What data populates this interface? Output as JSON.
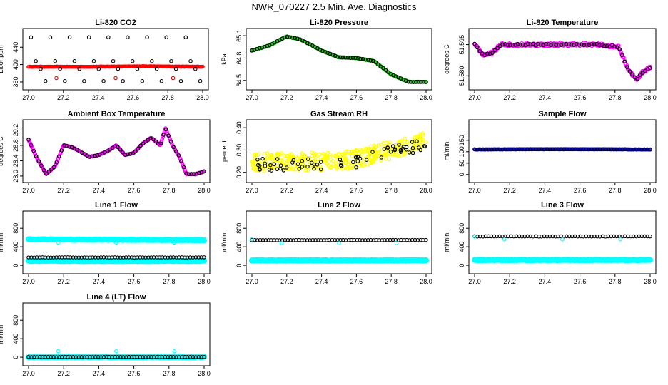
{
  "title": "NWR_070227  2.5 Min. Ave. Diagnostics",
  "colors": {
    "black": "#000000",
    "red": "#ff0000",
    "green": "#22cc22",
    "magenta": "#ff00ff",
    "yellow": "#ffff00",
    "blue": "#0000cc",
    "cyan": "#00ffff"
  },
  "chart_data": [
    {
      "id": "co2",
      "type": "scatter",
      "title": "Li-820 CO2",
      "ylabel": "Licor ppm",
      "xlim": [
        27.0,
        28.0
      ],
      "ylim": [
        355,
        470
      ],
      "xticks": [
        "27.0",
        "27.2",
        "27.4",
        "27.6",
        "27.8",
        "28.0"
      ],
      "yticks": [
        "360",
        "400",
        "440"
      ],
      "series": [
        {
          "color": "red",
          "pattern": "flat",
          "values": [
            395,
            395,
            396,
            395
          ]
        },
        {
          "color": "black",
          "pattern": "levels",
          "values": [
            463,
            408,
            390,
            362
          ]
        },
        {
          "color": "red",
          "pattern": "points",
          "x": [
            27.16,
            27.5,
            27.83
          ],
          "values": [
            369,
            369,
            369
          ]
        }
      ]
    },
    {
      "id": "press",
      "type": "scatter",
      "title": "Li-820 Pressure",
      "ylabel": "kPa",
      "xlim": [
        27.0,
        28.0
      ],
      "ylim": [
        64.45,
        65.12
      ],
      "xticks": [
        "27.0",
        "27.2",
        "27.4",
        "27.6",
        "27.8",
        "28.0"
      ],
      "yticks": [
        "64.5",
        "64.8",
        "65.1"
      ],
      "series": [
        {
          "color": "green",
          "pattern": "curve",
          "x": [
            27.0,
            27.1,
            27.2,
            27.28,
            27.4,
            27.5,
            27.6,
            27.7,
            27.8,
            27.9,
            28.0
          ],
          "values": [
            64.9,
            64.97,
            65.09,
            65.05,
            64.9,
            64.81,
            64.8,
            64.76,
            64.58,
            64.48,
            64.48
          ]
        },
        {
          "color": "black",
          "pattern": "curve",
          "x": [
            27.0,
            27.1,
            27.2,
            27.28,
            27.4,
            27.5,
            27.6,
            27.7,
            27.8,
            27.9,
            28.0
          ],
          "values": [
            64.9,
            64.97,
            65.09,
            65.05,
            64.9,
            64.81,
            64.8,
            64.76,
            64.58,
            64.48,
            64.48
          ]
        }
      ]
    },
    {
      "id": "temp",
      "type": "scatter",
      "title": "Li-820 Temperature",
      "ylabel": "degrees C",
      "xlim": [
        27.0,
        28.0
      ],
      "ylim": [
        51.576,
        51.6
      ],
      "xticks": [
        "27.0",
        "27.2",
        "27.4",
        "27.6",
        "27.8",
        "28.0"
      ],
      "yticks": [
        "51.580",
        "51.595"
      ],
      "series": [
        {
          "color": "magenta",
          "pattern": "curve",
          "x": [
            27.0,
            27.05,
            27.1,
            27.15,
            27.3,
            27.5,
            27.7,
            27.82,
            27.87,
            27.92,
            27.96,
            28.0
          ],
          "values": [
            51.595,
            51.59,
            51.591,
            51.595,
            51.595,
            51.595,
            51.595,
            51.594,
            51.584,
            51.578,
            51.582,
            51.584
          ]
        },
        {
          "color": "black",
          "pattern": "curve",
          "x": [
            27.0,
            27.05,
            27.1,
            27.15,
            27.3,
            27.5,
            27.7,
            27.82,
            27.87,
            27.92,
            27.96,
            28.0
          ],
          "values": [
            51.595,
            51.59,
            51.591,
            51.595,
            51.595,
            51.595,
            51.595,
            51.594,
            51.584,
            51.578,
            51.582,
            51.584
          ]
        }
      ]
    },
    {
      "id": "ambient",
      "type": "scatter",
      "title": "Ambient Box Temperature",
      "ylabel": "degrees C",
      "xlim": [
        27.0,
        28.0
      ],
      "ylim": [
        27.98,
        29.32
      ],
      "xticks": [
        "27.0",
        "27.2",
        "27.4",
        "27.6",
        "27.8",
        "28.0"
      ],
      "yticks": [
        "28.0",
        "28.4",
        "28.8",
        "29.2"
      ],
      "series": [
        {
          "color": "magenta",
          "pattern": "curve",
          "x": [
            27.0,
            27.05,
            27.1,
            27.15,
            27.2,
            27.25,
            27.3,
            27.35,
            27.4,
            27.45,
            27.5,
            27.55,
            27.6,
            27.65,
            27.7,
            27.75,
            27.78,
            27.82,
            27.86,
            27.9,
            27.95,
            28.0
          ],
          "values": [
            28.95,
            28.45,
            28.05,
            28.25,
            28.8,
            28.75,
            28.62,
            28.5,
            28.55,
            28.65,
            28.8,
            28.55,
            28.6,
            28.85,
            29.0,
            28.8,
            29.25,
            28.8,
            28.5,
            28.05,
            28.05,
            28.12
          ]
        },
        {
          "color": "black",
          "pattern": "curve",
          "x": [
            27.0,
            27.05,
            27.1,
            27.15,
            27.2,
            27.25,
            27.3,
            27.35,
            27.4,
            27.45,
            27.5,
            27.55,
            27.6,
            27.65,
            27.7,
            27.75,
            27.78,
            27.82,
            27.86,
            27.9,
            27.95,
            28.0
          ],
          "values": [
            28.95,
            28.45,
            28.05,
            28.25,
            28.8,
            28.75,
            28.62,
            28.5,
            28.55,
            28.65,
            28.8,
            28.55,
            28.6,
            28.85,
            29.0,
            28.8,
            29.25,
            28.8,
            28.5,
            28.05,
            28.05,
            28.12
          ]
        }
      ]
    },
    {
      "id": "rh",
      "type": "scatter",
      "title": "Gas Stream RH",
      "ylabel": "percent",
      "xlim": [
        27.0,
        28.0
      ],
      "ylim": [
        0.18,
        0.41
      ],
      "xticks": [
        "27.0",
        "27.2",
        "27.4",
        "27.6",
        "27.8",
        "28.0"
      ],
      "yticks": [
        "0.20",
        "0.30",
        "0.40"
      ],
      "series": [
        {
          "color": "yellow",
          "pattern": "noisy",
          "x": [
            27.0,
            27.5,
            27.6,
            28.0
          ],
          "values": [
            0.245,
            0.25,
            0.26,
            0.34
          ]
        },
        {
          "color": "black",
          "pattern": "noisy",
          "x": [
            27.0,
            27.5,
            27.6,
            28.0
          ],
          "values": [
            0.235,
            0.24,
            0.25,
            0.33
          ]
        }
      ]
    },
    {
      "id": "sample",
      "type": "scatter",
      "title": "Sample Flow",
      "ylabel": "ml/min",
      "xlim": [
        27.0,
        28.0
      ],
      "ylim": [
        -10,
        215
      ],
      "xticks": [
        "27.0",
        "27.2",
        "27.4",
        "27.6",
        "27.8",
        "28.0"
      ],
      "yticks": [
        "0",
        "50",
        "100",
        "150"
      ],
      "series": [
        {
          "color": "blue",
          "pattern": "flat",
          "values": [
            110,
            111,
            111,
            110
          ]
        },
        {
          "color": "black",
          "pattern": "flat",
          "values": [
            110,
            111,
            111,
            110
          ]
        }
      ]
    },
    {
      "id": "line1",
      "type": "scatter",
      "title": "Line 1 Flow",
      "ylabel": "ml/min",
      "xlim": [
        27.0,
        28.0
      ],
      "ylim": [
        -60,
        1050
      ],
      "xticks": [
        "27.0",
        "27.2",
        "27.4",
        "27.6",
        "27.8",
        "28.0"
      ],
      "yticks": [
        "0",
        "400",
        "800"
      ],
      "series": [
        {
          "color": "cyan",
          "pattern": "band",
          "values": [
            560,
            555,
            550,
            545
          ]
        },
        {
          "color": "cyan",
          "pattern": "band",
          "values": [
            95,
            95,
            95,
            95
          ]
        },
        {
          "color": "black",
          "pattern": "flat",
          "values": [
            170,
            170,
            170,
            170
          ]
        },
        {
          "color": "cyan",
          "pattern": "points",
          "x": [
            27.17,
            27.5,
            27.83
          ],
          "values": [
            490,
            490,
            490
          ]
        }
      ]
    },
    {
      "id": "line2",
      "type": "scatter",
      "title": "Line 2 Flow",
      "ylabel": "ml/min",
      "xlim": [
        27.0,
        28.0
      ],
      "ylim": [
        -60,
        1050
      ],
      "xticks": [
        "27.0",
        "27.2",
        "27.4",
        "27.6",
        "27.8",
        "28.0"
      ],
      "yticks": [
        "0",
        "400",
        "800"
      ],
      "series": [
        {
          "color": "cyan",
          "pattern": "band",
          "values": [
            105,
            105,
            105,
            105
          ]
        },
        {
          "color": "black",
          "pattern": "flat",
          "values": [
            545,
            545,
            545,
            545
          ]
        },
        {
          "color": "cyan",
          "pattern": "points",
          "x": [
            27.0,
            27.17,
            27.5,
            27.83
          ],
          "values": [
            560,
            480,
            480,
            480
          ]
        }
      ]
    },
    {
      "id": "line3",
      "type": "scatter",
      "title": "Line 3 Flow",
      "ylabel": "ml/min",
      "xlim": [
        27.0,
        28.0
      ],
      "ylim": [
        -60,
        1050
      ],
      "xticks": [
        "27.0",
        "27.2",
        "27.4",
        "27.6",
        "27.8",
        "28.0"
      ],
      "yticks": [
        "0",
        "400",
        "800"
      ],
      "series": [
        {
          "color": "cyan",
          "pattern": "band",
          "values": [
            115,
            115,
            115,
            115
          ]
        },
        {
          "color": "black",
          "pattern": "flat",
          "values": [
            625,
            625,
            625,
            625
          ]
        },
        {
          "color": "cyan",
          "pattern": "points",
          "x": [
            27.0,
            27.17,
            27.5,
            27.83
          ],
          "values": [
            620,
            560,
            560,
            560
          ]
        }
      ]
    },
    {
      "id": "line4",
      "type": "scatter",
      "title": "Line 4 (LT) Flow",
      "ylabel": "ml/min",
      "xlim": [
        27.0,
        28.0
      ],
      "ylim": [
        -60,
        1050
      ],
      "xticks": [
        "27.0",
        "27.2",
        "27.4",
        "27.6",
        "27.8",
        "28.0"
      ],
      "yticks": [
        "0",
        "400",
        "800"
      ],
      "series": [
        {
          "color": "cyan",
          "pattern": "band",
          "values": [
            5,
            5,
            5,
            5
          ]
        },
        {
          "color": "black",
          "pattern": "flat",
          "values": [
            5,
            5,
            5,
            5
          ]
        },
        {
          "color": "cyan",
          "pattern": "points",
          "x": [
            27.17,
            27.5,
            27.83
          ],
          "values": [
            130,
            130,
            130
          ]
        }
      ]
    }
  ]
}
